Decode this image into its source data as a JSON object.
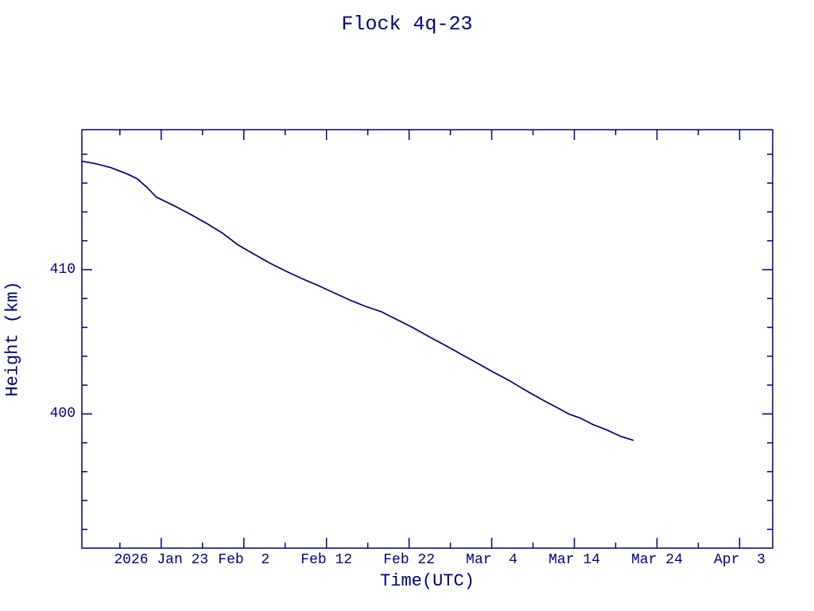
{
  "page": {
    "background": "#ffffff",
    "accent": "#00008b"
  },
  "chart_data": {
    "type": "line",
    "title": "Flock 4q-23",
    "xlabel": "Time(UTC)",
    "ylabel": "Height (km)",
    "line_color": "#00008b",
    "axis_color": "#00008b",
    "grid": false,
    "legend": "none",
    "x_unit": "day of year 2026 (UTC)",
    "xlim": [
      13.4,
      97.0
    ],
    "ylim": [
      390.7,
      419.7
    ],
    "x_major_ticks": [
      {
        "doy": 23,
        "label": "2026 Jan 23"
      },
      {
        "doy": 33,
        "label": "Feb  2"
      },
      {
        "doy": 43,
        "label": "Feb 12"
      },
      {
        "doy": 53,
        "label": "Feb 22"
      },
      {
        "doy": 63,
        "label": "Mar  4"
      },
      {
        "doy": 73,
        "label": "Mar 14"
      },
      {
        "doy": 83,
        "label": "Mar 24"
      },
      {
        "doy": 93,
        "label": "Apr  3"
      }
    ],
    "x_minor_ticks": [
      18,
      28,
      38,
      48,
      58,
      68,
      78,
      88
    ],
    "y_major_ticks": [
      {
        "km": 400,
        "label": "400"
      },
      {
        "km": 410,
        "label": "410"
      }
    ],
    "y_minor_ticks": [
      392,
      394,
      396,
      398,
      402,
      404,
      406,
      408,
      412,
      414,
      416,
      418
    ],
    "points": [
      [
        13.4,
        417.51
      ],
      [
        15.0,
        417.35
      ],
      [
        16.9,
        417.07
      ],
      [
        18.9,
        416.63
      ],
      [
        20.1,
        416.3
      ],
      [
        21.3,
        415.69
      ],
      [
        22.4,
        415.03
      ],
      [
        24.6,
        414.42
      ],
      [
        26.6,
        413.81
      ],
      [
        28.5,
        413.2
      ],
      [
        30.4,
        412.54
      ],
      [
        32.3,
        411.71
      ],
      [
        34.3,
        411.05
      ],
      [
        36.2,
        410.44
      ],
      [
        38.1,
        409.89
      ],
      [
        40.0,
        409.39
      ],
      [
        42.0,
        408.9
      ],
      [
        43.9,
        408.4
      ],
      [
        45.8,
        407.9
      ],
      [
        47.7,
        407.46
      ],
      [
        49.7,
        407.07
      ],
      [
        51.6,
        406.52
      ],
      [
        53.5,
        405.97
      ],
      [
        55.4,
        405.36
      ],
      [
        57.4,
        404.75
      ],
      [
        59.3,
        404.14
      ],
      [
        61.2,
        403.54
      ],
      [
        63.1,
        402.93
      ],
      [
        65.1,
        402.32
      ],
      [
        66.7,
        401.77
      ],
      [
        68.9,
        401.05
      ],
      [
        70.9,
        400.44
      ],
      [
        72.3,
        400.0
      ],
      [
        73.7,
        399.72
      ],
      [
        75.2,
        399.28
      ],
      [
        76.9,
        398.9
      ],
      [
        78.6,
        398.45
      ],
      [
        80.1,
        398.18
      ]
    ]
  }
}
